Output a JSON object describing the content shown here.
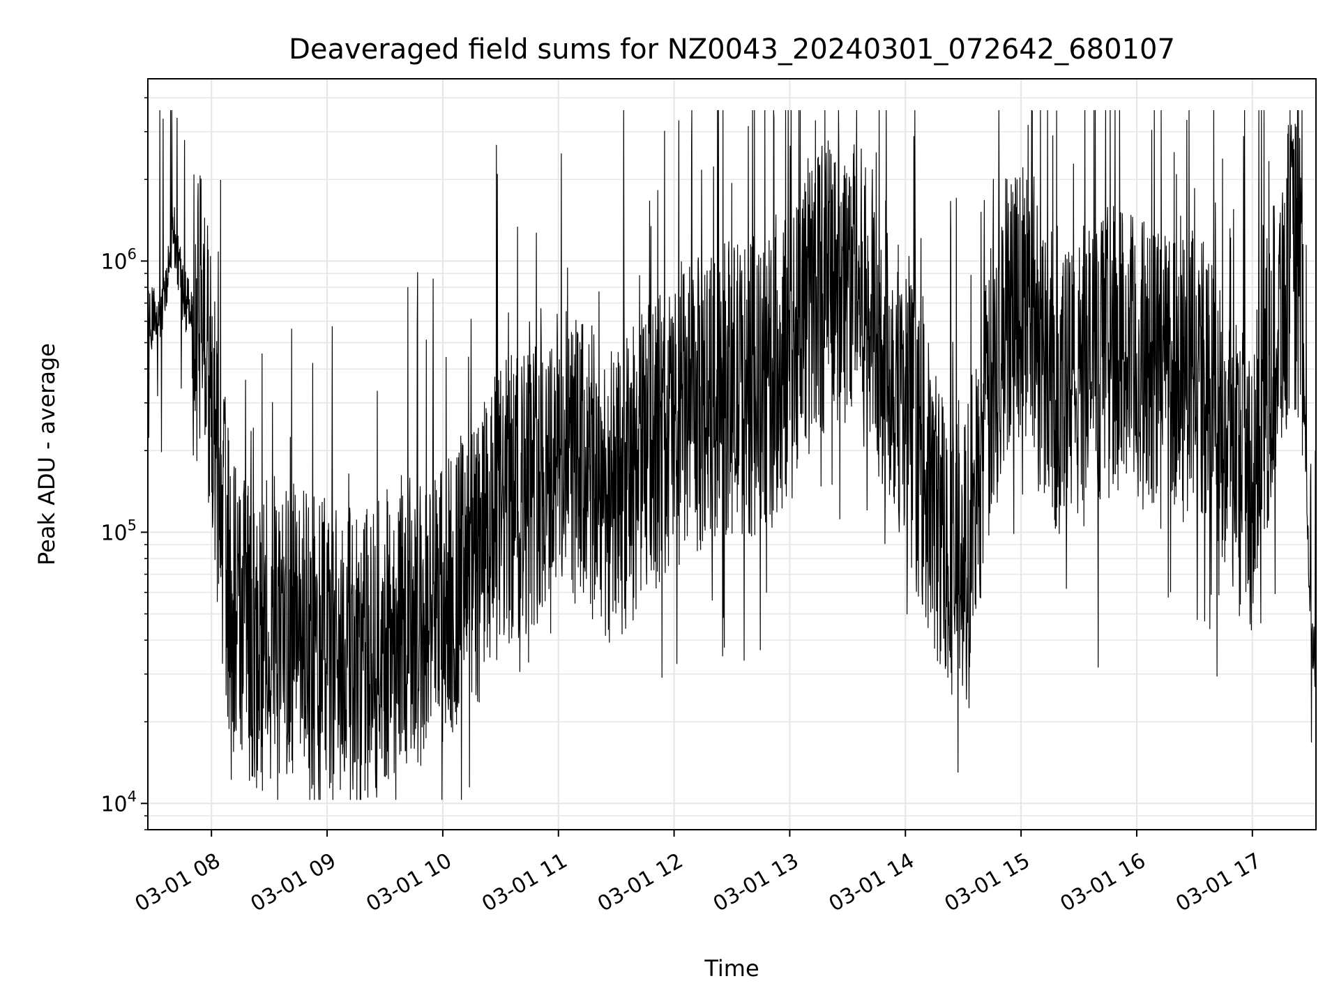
{
  "chart_data": {
    "type": "line",
    "title": "Deaveraged field sums for NZ0043_20240301_072642_680107",
    "xlabel": "Time",
    "ylabel": "Peak ADU - average",
    "yscale": "log",
    "ylim": [
      8000,
      4700000
    ],
    "xlim": [
      "2024-03-01 07:27",
      "2024-03-01 17:33"
    ],
    "x_ticks": [
      "03-01 08",
      "03-01 09",
      "03-01 10",
      "03-01 11",
      "03-01 12",
      "03-01 13",
      "03-01 14",
      "03-01 15",
      "03-01 16",
      "03-01 17"
    ],
    "y_ticks": [
      {
        "value": 10000,
        "base": "10",
        "exp": "4"
      },
      {
        "value": 100000,
        "base": "10",
        "exp": "5"
      },
      {
        "value": 1000000,
        "base": "10",
        "exp": "6"
      }
    ],
    "grid": true,
    "series_color": "#000000",
    "series": [
      {
        "name": "",
        "x": [
          "2024-03-01 07:27",
          "2024-03-01 07:35",
          "2024-03-01 07:40",
          "2024-03-01 07:45",
          "2024-03-01 07:50",
          "2024-03-01 07:55",
          "2024-03-01 08:00",
          "2024-03-01 08:05",
          "2024-03-01 08:10",
          "2024-03-01 08:20",
          "2024-03-01 08:30",
          "2024-03-01 08:40",
          "2024-03-01 08:50",
          "2024-03-01 09:00",
          "2024-03-01 09:10",
          "2024-03-01 09:20",
          "2024-03-01 09:30",
          "2024-03-01 09:40",
          "2024-03-01 09:50",
          "2024-03-01 10:00",
          "2024-03-01 10:15",
          "2024-03-01 10:30",
          "2024-03-01 10:45",
          "2024-03-01 11:00",
          "2024-03-01 11:15",
          "2024-03-01 11:30",
          "2024-03-01 11:45",
          "2024-03-01 12:00",
          "2024-03-01 12:15",
          "2024-03-01 12:30",
          "2024-03-01 12:45",
          "2024-03-01 12:55",
          "2024-03-01 13:05",
          "2024-03-01 13:15",
          "2024-03-01 13:30",
          "2024-03-01 13:45",
          "2024-03-01 14:00",
          "2024-03-01 14:15",
          "2024-03-01 14:30",
          "2024-03-01 14:45",
          "2024-03-01 14:55",
          "2024-03-01 15:05",
          "2024-03-01 15:20",
          "2024-03-01 15:35",
          "2024-03-01 15:50",
          "2024-03-01 16:00",
          "2024-03-01 16:15",
          "2024-03-01 16:30",
          "2024-03-01 16:45",
          "2024-03-01 17:00",
          "2024-03-01 17:10",
          "2024-03-01 17:15",
          "2024-03-01 17:20",
          "2024-03-01 17:25",
          "2024-03-01 17:30",
          "2024-03-01 17:33"
        ],
        "y": [
          600000,
          650000,
          1400000,
          750000,
          650000,
          600000,
          300000,
          120000,
          55000,
          40000,
          38000,
          45000,
          40000,
          38000,
          35000,
          34000,
          40000,
          50000,
          45000,
          55000,
          70000,
          120000,
          150000,
          200000,
          170000,
          130000,
          200000,
          250000,
          300000,
          350000,
          320000,
          380000,
          650000,
          800000,
          900000,
          600000,
          300000,
          120000,
          70000,
          350000,
          800000,
          700000,
          300000,
          400000,
          500000,
          400000,
          450000,
          400000,
          250000,
          150000,
          450000,
          700000,
          1000000,
          900000,
          50000,
          30000
        ]
      }
    ]
  }
}
